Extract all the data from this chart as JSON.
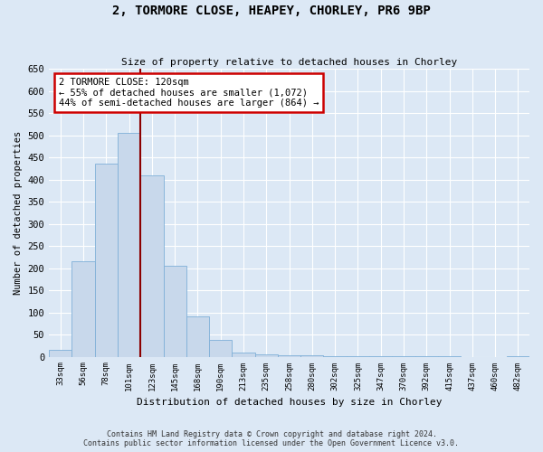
{
  "title1": "2, TORMORE CLOSE, HEAPEY, CHORLEY, PR6 9BP",
  "title2": "Size of property relative to detached houses in Chorley",
  "xlabel": "Distribution of detached houses by size in Chorley",
  "ylabel": "Number of detached properties",
  "categories": [
    "33sqm",
    "56sqm",
    "78sqm",
    "101sqm",
    "123sqm",
    "145sqm",
    "168sqm",
    "190sqm",
    "213sqm",
    "235sqm",
    "258sqm",
    "280sqm",
    "302sqm",
    "325sqm",
    "347sqm",
    "370sqm",
    "392sqm",
    "415sqm",
    "437sqm",
    "460sqm",
    "482sqm"
  ],
  "values": [
    15,
    215,
    435,
    505,
    410,
    205,
    90,
    38,
    10,
    5,
    4,
    3,
    2,
    1,
    1,
    1,
    1,
    1,
    0,
    0,
    1
  ],
  "bar_color": "#c8d8eb",
  "bar_edge_color": "#7fb0d8",
  "vline_color": "#8b0000",
  "annotation_text": "2 TORMORE CLOSE: 120sqm\n← 55% of detached houses are smaller (1,072)\n44% of semi-detached houses are larger (864) →",
  "annotation_box_color": "#ffffff",
  "annotation_box_edgecolor": "#cc0000",
  "ylim": [
    0,
    650
  ],
  "yticks": [
    0,
    50,
    100,
    150,
    200,
    250,
    300,
    350,
    400,
    450,
    500,
    550,
    600,
    650
  ],
  "footer1": "Contains HM Land Registry data © Crown copyright and database right 2024.",
  "footer2": "Contains public sector information licensed under the Open Government Licence v3.0.",
  "bg_color": "#dce8f5",
  "plot_bg_color": "#dce8f5",
  "grid_color": "#ffffff"
}
